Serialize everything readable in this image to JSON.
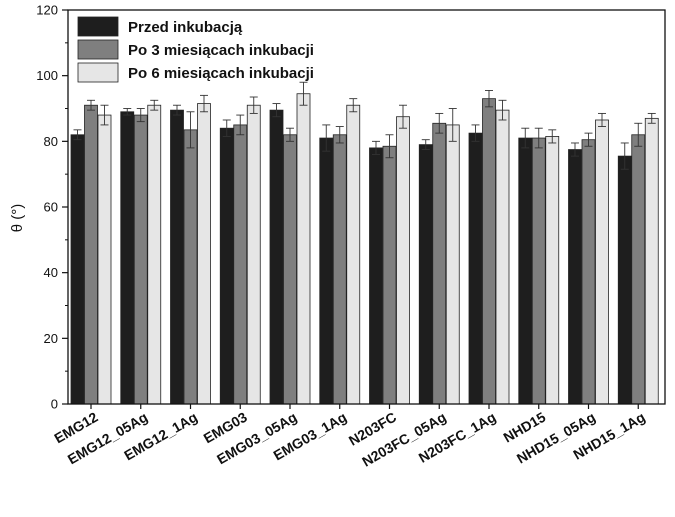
{
  "chart_data": {
    "type": "bar",
    "ylabel": "θ (°)",
    "ylim": [
      0,
      120
    ],
    "yticks": [
      0,
      20,
      40,
      60,
      80,
      100,
      120
    ],
    "legend_position": "top-left",
    "categories": [
      "EMG12",
      "EMG12_05Ag",
      "EMG12_1Ag",
      "EMG03",
      "EMG03_05Ag",
      "EMG03_1Ag",
      "N203FC",
      "N203FC_05Ag",
      "N203FC_1Ag",
      "NHD15",
      "NHD15_05Ag",
      "NHD15_1Ag"
    ],
    "series": [
      {
        "name": "Przed inkubacją",
        "color": "#1e1e1e",
        "values": [
          82,
          89,
          89.5,
          84,
          89.5,
          81,
          78,
          79,
          82.5,
          81,
          77.5,
          75.5
        ],
        "errors": [
          1.5,
          1.0,
          1.5,
          2.5,
          2.0,
          4.0,
          2.0,
          1.5,
          2.5,
          3.0,
          2.0,
          4.0
        ]
      },
      {
        "name": "Po 3 miesiącach inkubacji",
        "color": "#7f7f7f",
        "values": [
          91,
          88,
          83.5,
          85,
          82,
          82,
          78.5,
          85.5,
          93,
          81,
          80.5,
          82
        ],
        "errors": [
          1.5,
          2.0,
          5.5,
          3.0,
          2.0,
          2.5,
          3.5,
          3.0,
          2.5,
          3.0,
          2.0,
          3.5
        ]
      },
      {
        "name": "Po 6 miesiącach inkubacji",
        "color": "#e6e6e6",
        "values": [
          88,
          91,
          91.5,
          91,
          94.5,
          91,
          87.5,
          85,
          89.5,
          81.5,
          86.5,
          87
        ],
        "errors": [
          3.0,
          1.5,
          2.5,
          2.5,
          3.5,
          2.0,
          3.5,
          5.0,
          3.0,
          2.0,
          2.0,
          1.5
        ]
      }
    ]
  }
}
